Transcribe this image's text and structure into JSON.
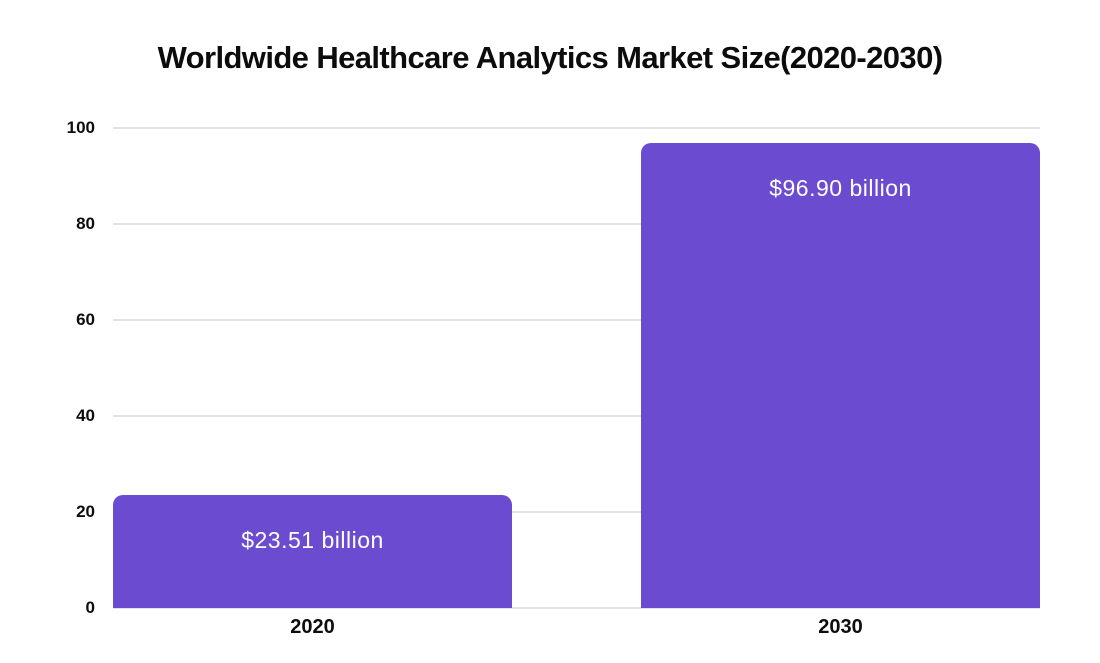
{
  "chart_data": {
    "type": "bar",
    "title": "Worldwide Healthcare Analytics Market Size(2020-2030)",
    "categories": [
      "2020",
      "2030"
    ],
    "values": [
      23.51,
      96.9
    ],
    "value_labels": [
      "$23.51 billion",
      "$96.90 billion"
    ],
    "xlabel": "",
    "ylabel": "",
    "y_ticks": [
      0,
      20,
      40,
      60,
      80,
      100
    ],
    "ylim": [
      0,
      100
    ],
    "grid": "horizontal",
    "legend": "none",
    "colors": {
      "bar": "#6b4cd0",
      "value_label_text": "#ffffff",
      "gridline": "#e3e3e3",
      "axis_text": "#0d0d0d",
      "title_text": "#0c0c0c",
      "background": "#ffffff"
    }
  }
}
